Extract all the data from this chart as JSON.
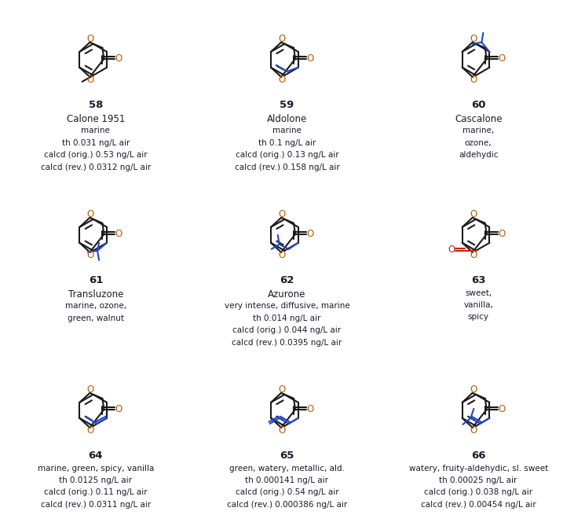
{
  "background_color": "#ffffff",
  "text_color": "#1a1a2e",
  "bond_color": "#1a1a1a",
  "sub_color": "#2244cc",
  "red_color": "#cc2200",
  "compounds": [
    {
      "number": "58",
      "name": "Calone 1951",
      "lines": [
        "marine",
        "th 0.031 ng/L air",
        "calcd (orig.) 0.53 ng/L air",
        "calcd (rev.) 0.0312 ng/L air"
      ],
      "sub_type": "methyl_para"
    },
    {
      "number": "59",
      "name": "Aldolone",
      "lines": [
        "marine",
        "th 0.1 ng/L air",
        "calcd (orig.) 0.13 ng/L air",
        "calcd (rev.) 0.158 ng/L air"
      ],
      "sub_type": "propyl_meta"
    },
    {
      "number": "60",
      "name": "Cascalone",
      "lines": [
        "marine,",
        "ozone,",
        "aldehydic"
      ],
      "sub_type": "isopropyl_meta"
    },
    {
      "number": "61",
      "name": "Transluzone",
      "lines": [
        "marine, ozone,",
        "green, walnut"
      ],
      "sub_type": "tbutyl_meta"
    },
    {
      "number": "62",
      "name": "Azurone",
      "lines": [
        "very intense, diffusive, marine",
        "th 0.014 ng/L air",
        "calcd (orig.) 0.044 ng/L air",
        "calcd (rev.) 0.0395 ng/L air"
      ],
      "sub_type": "isobutyl_meta"
    },
    {
      "number": "63",
      "name": "",
      "lines": [
        "sweet,",
        "vanilla,",
        "spicy"
      ],
      "sub_type": "aldehyde_para"
    },
    {
      "number": "64",
      "name": "",
      "lines": [
        "marine, green, spicy, vanilla",
        "th 0.0125 ng/L air",
        "calcd (orig.) 0.11 ng/L air",
        "calcd (rev.) 0.0311 ng/L air"
      ],
      "sub_type": "propenyl_meta"
    },
    {
      "number": "65",
      "name": "",
      "lines": [
        "green, watery, metallic, ald.",
        "th 0.000141 ng/L air",
        "calcd (orig.) 0.54 ng/L air",
        "calcd (rev.) 0.000386 ng/L air"
      ],
      "sub_type": "butadienyl_meta"
    },
    {
      "number": "66",
      "name": "",
      "lines": [
        "watery, fruity-aldehydic, sl. sweet",
        "th 0.00025 ng/L air",
        "calcd (orig.) 0.038 ng/L air",
        "calcd (rev.) 0.00454 ng/L air"
      ],
      "sub_type": "methylbutenyl_meta"
    }
  ]
}
